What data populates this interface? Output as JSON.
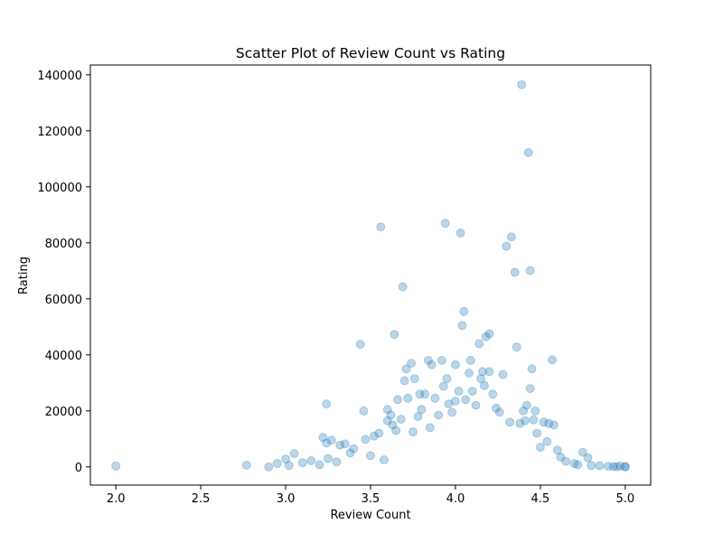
{
  "chart_data": {
    "type": "scatter",
    "title": "Scatter Plot of Review Count vs Rating",
    "xlabel": "Review Count",
    "ylabel": "Rating",
    "xlim": [
      1.85,
      5.15
    ],
    "ylim": [
      -6500,
      143500
    ],
    "xticks": [
      2.0,
      2.5,
      3.0,
      3.5,
      4.0,
      4.5,
      5.0
    ],
    "xtick_labels": [
      "2.0",
      "2.5",
      "3.0",
      "3.5",
      "4.0",
      "4.5",
      "5.0"
    ],
    "yticks": [
      0,
      20000,
      40000,
      60000,
      80000,
      100000,
      120000,
      140000
    ],
    "ytick_labels": [
      "0",
      "20000",
      "40000",
      "60000",
      "80000",
      "100000",
      "120000",
      "140000"
    ],
    "grid": false,
    "marker_color": "#1f77b4",
    "marker_alpha": 0.3,
    "series": [
      {
        "values": [
          [
            2.0,
            300
          ],
          [
            2.77,
            600
          ],
          [
            2.9,
            0
          ],
          [
            2.95,
            1200
          ],
          [
            3.0,
            2800
          ],
          [
            3.02,
            500
          ],
          [
            3.05,
            4800
          ],
          [
            3.1,
            1500
          ],
          [
            3.15,
            2200
          ],
          [
            3.2,
            800
          ],
          [
            3.22,
            10500
          ],
          [
            3.24,
            8500
          ],
          [
            3.24,
            22500
          ],
          [
            3.25,
            3000
          ],
          [
            3.27,
            9500
          ],
          [
            3.3,
            1800
          ],
          [
            3.32,
            7800
          ],
          [
            3.35,
            8200
          ],
          [
            3.38,
            5000
          ],
          [
            3.4,
            6500
          ],
          [
            3.44,
            43800
          ],
          [
            3.46,
            20000
          ],
          [
            3.47,
            9800
          ],
          [
            3.5,
            4000
          ],
          [
            3.52,
            11000
          ],
          [
            3.55,
            12000
          ],
          [
            3.56,
            85700
          ],
          [
            3.58,
            2500
          ],
          [
            3.6,
            16500
          ],
          [
            3.6,
            20500
          ],
          [
            3.62,
            18500
          ],
          [
            3.63,
            15000
          ],
          [
            3.64,
            47300
          ],
          [
            3.65,
            13000
          ],
          [
            3.66,
            24000
          ],
          [
            3.68,
            17000
          ],
          [
            3.69,
            64300
          ],
          [
            3.7,
            30800
          ],
          [
            3.71,
            35000
          ],
          [
            3.72,
            24500
          ],
          [
            3.74,
            37000
          ],
          [
            3.75,
            12500
          ],
          [
            3.76,
            31500
          ],
          [
            3.78,
            18000
          ],
          [
            3.79,
            26000
          ],
          [
            3.8,
            20500
          ],
          [
            3.82,
            26000
          ],
          [
            3.84,
            38000
          ],
          [
            3.85,
            14000
          ],
          [
            3.86,
            36500
          ],
          [
            3.88,
            24500
          ],
          [
            3.9,
            18500
          ],
          [
            3.92,
            38000
          ],
          [
            3.93,
            28800
          ],
          [
            3.94,
            87000
          ],
          [
            3.95,
            31500
          ],
          [
            3.96,
            22500
          ],
          [
            3.98,
            19500
          ],
          [
            4.0,
            36500
          ],
          [
            4.0,
            23500
          ],
          [
            4.02,
            27000
          ],
          [
            4.03,
            83500
          ],
          [
            4.04,
            50500
          ],
          [
            4.05,
            55500
          ],
          [
            4.06,
            24000
          ],
          [
            4.08,
            33500
          ],
          [
            4.09,
            38000
          ],
          [
            4.1,
            27000
          ],
          [
            4.12,
            22000
          ],
          [
            4.14,
            44000
          ],
          [
            4.15,
            31500
          ],
          [
            4.16,
            34000
          ],
          [
            4.17,
            29000
          ],
          [
            4.18,
            46500
          ],
          [
            4.2,
            47500
          ],
          [
            4.2,
            34000
          ],
          [
            4.22,
            26000
          ],
          [
            4.24,
            21000
          ],
          [
            4.26,
            19500
          ],
          [
            4.28,
            33000
          ],
          [
            4.3,
            78800
          ],
          [
            4.32,
            16000
          ],
          [
            4.33,
            82100
          ],
          [
            4.35,
            69500
          ],
          [
            4.36,
            42800
          ],
          [
            4.38,
            15500
          ],
          [
            4.39,
            136500
          ],
          [
            4.4,
            20000
          ],
          [
            4.41,
            16500
          ],
          [
            4.42,
            22000
          ],
          [
            4.43,
            112200
          ],
          [
            4.44,
            70100
          ],
          [
            4.44,
            28000
          ],
          [
            4.45,
            35000
          ],
          [
            4.46,
            16800
          ],
          [
            4.47,
            20000
          ],
          [
            4.48,
            12000
          ],
          [
            4.5,
            7000
          ],
          [
            4.52,
            16000
          ],
          [
            4.54,
            9000
          ],
          [
            4.55,
            15500
          ],
          [
            4.57,
            38200
          ],
          [
            4.58,
            15000
          ],
          [
            4.6,
            6000
          ],
          [
            4.62,
            3500
          ],
          [
            4.65,
            2000
          ],
          [
            4.7,
            1200
          ],
          [
            4.72,
            800
          ],
          [
            4.75,
            5200
          ],
          [
            4.78,
            3200
          ],
          [
            4.8,
            500
          ],
          [
            4.85,
            400
          ],
          [
            4.9,
            200
          ],
          [
            4.93,
            100
          ],
          [
            4.95,
            50
          ],
          [
            4.97,
            300
          ],
          [
            5.0,
            0
          ],
          [
            5.0,
            150
          ]
        ]
      }
    ]
  }
}
